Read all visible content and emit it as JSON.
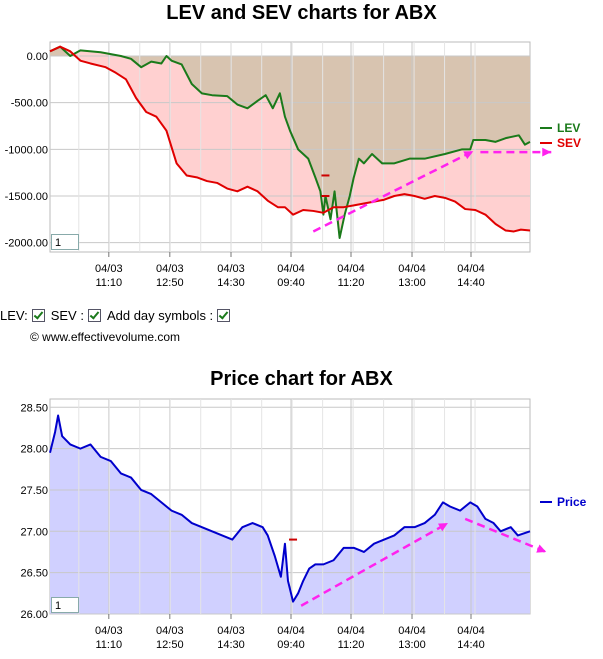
{
  "controls": {
    "lev_label": "LEV:",
    "sev_label": "SEV :",
    "day_symbols_label": "Add day symbols :",
    "copyright": "© www.effectivevolume.com"
  },
  "colors": {
    "lev": "#1a7a1a",
    "sev": "#e00000",
    "price": "#0000cc",
    "lev_fill": "#d8c4b0",
    "sev_fill": "#ffd0d0",
    "price_fill": "#d0d0ff",
    "annotation": "#ff22ee"
  },
  "chart_data": [
    {
      "type": "line",
      "title": "LEV and SEV charts for ABX",
      "zoom_value": "1",
      "y_ticks": [
        "0.00",
        "-500.00",
        "-1000.00",
        "-1500.00",
        "-2000.00"
      ],
      "y_tick_values": [
        0,
        -500,
        -1000,
        -1500,
        -2000
      ],
      "ylim": [
        -2100,
        150
      ],
      "x_ticks": [
        {
          "date": "04/03",
          "time": "11:10"
        },
        {
          "date": "04/03",
          "time": "12:50"
        },
        {
          "date": "04/03",
          "time": "14:30"
        },
        {
          "date": "04/04",
          "time": "09:40"
        },
        {
          "date": "04/04",
          "time": "11:20"
        },
        {
          "date": "04/04",
          "time": "13:00"
        },
        {
          "date": "04/04",
          "time": "14:40"
        }
      ],
      "legend": [
        "LEV",
        "SEV"
      ],
      "legend_placement": "right",
      "series": [
        {
          "name": "LEV",
          "values": [
            [
              0,
              50
            ],
            [
              10,
              100
            ],
            [
              20,
              0
            ],
            [
              30,
              60
            ],
            [
              50,
              40
            ],
            [
              70,
              0
            ],
            [
              80,
              -30
            ],
            [
              90,
              -120
            ],
            [
              100,
              -60
            ],
            [
              110,
              -80
            ],
            [
              115,
              0
            ],
            [
              120,
              -50
            ],
            [
              130,
              -90
            ],
            [
              140,
              -300
            ],
            [
              150,
              -400
            ],
            [
              160,
              -420
            ],
            [
              175,
              -430
            ],
            [
              185,
              -520
            ],
            [
              195,
              -560
            ],
            [
              205,
              -480
            ],
            [
              213,
              -420
            ],
            [
              220,
              -560
            ],
            [
              227,
              -400
            ],
            [
              232,
              -650
            ],
            [
              237,
              -800
            ],
            [
              245,
              -1000
            ],
            [
              255,
              -1100
            ],
            [
              262,
              -1300
            ],
            [
              267,
              -1450
            ],
            [
              270,
              -1700
            ],
            [
              272,
              -1500
            ],
            [
              277,
              -1750
            ],
            [
              281,
              -1450
            ],
            [
              286,
              -1950
            ],
            [
              291,
              -1700
            ],
            [
              296,
              -1500
            ],
            [
              300,
              -1300
            ],
            [
              305,
              -1100
            ],
            [
              310,
              -1150
            ],
            [
              318,
              -1050
            ],
            [
              328,
              -1150
            ],
            [
              340,
              -1150
            ],
            [
              355,
              -1100
            ],
            [
              370,
              -1100
            ],
            [
              390,
              -1050
            ],
            [
              407,
              -1000
            ],
            [
              415,
              -1000
            ],
            [
              418,
              -900
            ],
            [
              430,
              -900
            ],
            [
              440,
              -920
            ],
            [
              450,
              -880
            ],
            [
              463,
              -850
            ],
            [
              469,
              -950
            ],
            [
              474,
              -920
            ]
          ]
        },
        {
          "name": "SEV",
          "values": [
            [
              0,
              50
            ],
            [
              10,
              100
            ],
            [
              20,
              50
            ],
            [
              30,
              -50
            ],
            [
              40,
              -80
            ],
            [
              55,
              -120
            ],
            [
              65,
              -180
            ],
            [
              75,
              -250
            ],
            [
              85,
              -450
            ],
            [
              95,
              -600
            ],
            [
              105,
              -650
            ],
            [
              115,
              -800
            ],
            [
              125,
              -1150
            ],
            [
              135,
              -1280
            ],
            [
              145,
              -1300
            ],
            [
              155,
              -1340
            ],
            [
              165,
              -1360
            ],
            [
              175,
              -1420
            ],
            [
              185,
              -1450
            ],
            [
              195,
              -1400
            ],
            [
              205,
              -1450
            ],
            [
              215,
              -1550
            ],
            [
              225,
              -1620
            ],
            [
              232,
              -1620
            ],
            [
              240,
              -1700
            ],
            [
              250,
              -1650
            ],
            [
              260,
              -1660
            ],
            [
              270,
              -1680
            ],
            [
              280,
              -1620
            ],
            [
              290,
              -1620
            ],
            [
              300,
              -1600
            ],
            [
              310,
              -1580
            ],
            [
              320,
              -1560
            ],
            [
              330,
              -1540
            ],
            [
              340,
              -1500
            ],
            [
              350,
              -1480
            ],
            [
              360,
              -1500
            ],
            [
              370,
              -1530
            ],
            [
              380,
              -1500
            ],
            [
              390,
              -1520
            ],
            [
              400,
              -1560
            ],
            [
              410,
              -1640
            ],
            [
              420,
              -1650
            ],
            [
              430,
              -1700
            ],
            [
              440,
              -1800
            ],
            [
              450,
              -1870
            ],
            [
              458,
              -1880
            ],
            [
              465,
              -1860
            ],
            [
              474,
              -1870
            ]
          ]
        }
      ]
    },
    {
      "type": "area",
      "title": "Price chart for ABX",
      "zoom_value": "1",
      "y_ticks": [
        "28.50",
        "28.00",
        "27.50",
        "27.00",
        "26.50",
        "26.00"
      ],
      "y_tick_values": [
        28.5,
        28,
        27.5,
        27,
        26.5,
        26
      ],
      "ylim": [
        26,
        28.6
      ],
      "x_ticks": [
        {
          "date": "04/03",
          "time": "11:10"
        },
        {
          "date": "04/03",
          "time": "12:50"
        },
        {
          "date": "04/03",
          "time": "14:30"
        },
        {
          "date": "04/04",
          "time": "09:40"
        },
        {
          "date": "04/04",
          "time": "11:20"
        },
        {
          "date": "04/04",
          "time": "13:00"
        },
        {
          "date": "04/04",
          "time": "14:40"
        }
      ],
      "legend": [
        "Price"
      ],
      "legend_placement": "right",
      "series": [
        {
          "name": "Price",
          "values": [
            [
              0,
              27.95
            ],
            [
              5,
              28.2
            ],
            [
              8,
              28.4
            ],
            [
              12,
              28.15
            ],
            [
              20,
              28.05
            ],
            [
              30,
              28.0
            ],
            [
              40,
              28.05
            ],
            [
              50,
              27.9
            ],
            [
              60,
              27.85
            ],
            [
              70,
              27.7
            ],
            [
              80,
              27.65
            ],
            [
              90,
              27.5
            ],
            [
              100,
              27.45
            ],
            [
              110,
              27.35
            ],
            [
              120,
              27.25
            ],
            [
              130,
              27.2
            ],
            [
              140,
              27.1
            ],
            [
              150,
              27.05
            ],
            [
              160,
              27.0
            ],
            [
              170,
              26.95
            ],
            [
              180,
              26.9
            ],
            [
              190,
              27.05
            ],
            [
              200,
              27.1
            ],
            [
              210,
              27.05
            ],
            [
              215,
              26.95
            ],
            [
              222,
              26.7
            ],
            [
              228,
              26.45
            ],
            [
              232,
              26.85
            ],
            [
              235,
              26.4
            ],
            [
              240,
              26.15
            ],
            [
              245,
              26.25
            ],
            [
              250,
              26.4
            ],
            [
              256,
              26.55
            ],
            [
              262,
              26.6
            ],
            [
              270,
              26.6
            ],
            [
              280,
              26.65
            ],
            [
              290,
              26.8
            ],
            [
              300,
              26.8
            ],
            [
              310,
              26.75
            ],
            [
              320,
              26.85
            ],
            [
              330,
              26.9
            ],
            [
              340,
              26.95
            ],
            [
              350,
              27.05
            ],
            [
              360,
              27.05
            ],
            [
              370,
              27.1
            ],
            [
              380,
              27.2
            ],
            [
              388,
              27.35
            ],
            [
              395,
              27.3
            ],
            [
              405,
              27.25
            ],
            [
              415,
              27.35
            ],
            [
              422,
              27.3
            ],
            [
              430,
              27.15
            ],
            [
              438,
              27.1
            ],
            [
              445,
              27.0
            ],
            [
              455,
              27.05
            ],
            [
              462,
              26.95
            ],
            [
              474,
              27.0
            ]
          ]
        }
      ]
    }
  ]
}
